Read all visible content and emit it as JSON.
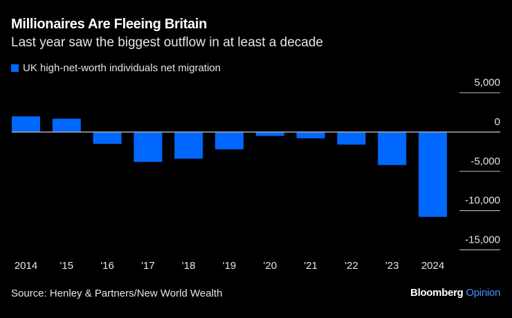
{
  "title": "Millionaires Are Fleeing Britain",
  "subtitle": "Last year saw the biggest outflow in at least a decade",
  "source": "Source: Henley & Partners/New World Wealth",
  "logo": {
    "brand": "Bloomberg",
    "suffix": "Opinion"
  },
  "colors": {
    "bar": "#0068ff",
    "background": "#000000",
    "axis": "#aaaaaa"
  },
  "chart_data": {
    "type": "bar",
    "categories": [
      "2014",
      "'15",
      "'16",
      "'17",
      "'18",
      "'19",
      "'20",
      "'21",
      "'22",
      "'23",
      "2024"
    ],
    "series": [
      {
        "name": "UK high-net-worth individuals net migration",
        "values": [
          2000,
          1700,
          -1500,
          -3800,
          -3400,
          -2200,
          -500,
          -800,
          -1600,
          -4200,
          -10800
        ]
      }
    ],
    "ylim": [
      -15000,
      5000
    ],
    "yticks": [
      5000,
      0,
      -5000,
      -10000,
      -15000
    ],
    "ytick_labels": [
      "5,000",
      "0",
      "-5,000",
      "-10,000",
      "-15,000"
    ],
    "y_axis_position": "right",
    "legend_position": "top-left",
    "grid": "short right-side gridlines"
  }
}
